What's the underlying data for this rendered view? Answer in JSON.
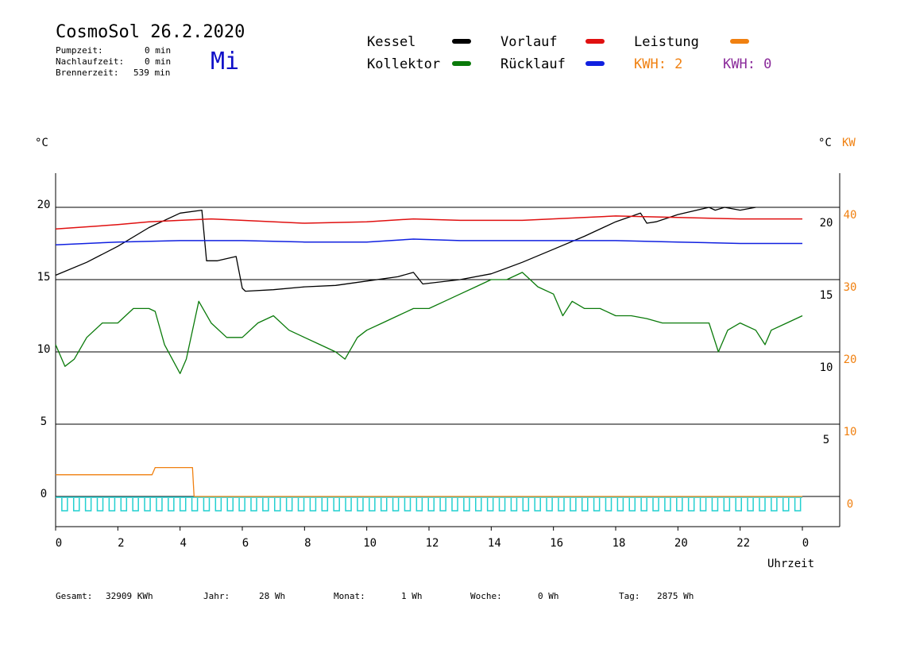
{
  "header": {
    "title": "CosmoSol 26.2.2020",
    "day": "Mi",
    "stats": [
      {
        "label": "Pumpzeit:",
        "value": "0 min"
      },
      {
        "label": "Nachlaufzeit:",
        "value": "0 min"
      },
      {
        "label": "Brennerzeit:",
        "value": "539 min"
      }
    ]
  },
  "legend": {
    "kessel": "Kessel",
    "kollektor": "Kollektor",
    "vorlauf": "Vorlauf",
    "ruecklauf": "Rücklauf",
    "leistung": "Leistung",
    "kwh1": "KWH: 2",
    "kwh2": "KWH: 0"
  },
  "colors": {
    "kessel": "#000000",
    "kollektor": "#0a7a0a",
    "vorlauf": "#e01010",
    "ruecklauf": "#1020e0",
    "leistung": "#f08010",
    "kwh2": "#8a2a9a",
    "pump": "#22d0d0"
  },
  "axes": {
    "left_unit": "°C",
    "right_unit": "°C",
    "right_unit2": "KW",
    "x_label": "Uhrzeit"
  },
  "chart_data": {
    "type": "line",
    "x_unit": "hour",
    "xlim": [
      0,
      24
    ],
    "x_ticks": [
      "0",
      "2",
      "4",
      "6",
      "8",
      "10",
      "12",
      "14",
      "16",
      "18",
      "20",
      "22",
      "0"
    ],
    "left_axis": {
      "ylim": [
        -1.5,
        22.5
      ],
      "ticks": [
        0,
        5,
        10,
        15,
        20
      ]
    },
    "right_axis_temp": {
      "ticks": [
        5,
        10,
        15,
        20
      ]
    },
    "right_axis_kw": {
      "ticks": [
        0,
        10,
        20,
        30,
        40
      ]
    },
    "gridlines": [
      0,
      5,
      10,
      15,
      20
    ],
    "series": [
      {
        "name": "Kessel",
        "color": "#000000",
        "x": [
          0,
          1,
          2,
          3,
          4,
          4.7,
          4.85,
          5.2,
          5.8,
          6.0,
          6.1,
          7,
          8,
          9,
          10,
          11,
          11.5,
          11.8,
          13,
          14,
          15,
          16,
          17,
          18,
          18.8,
          19.0,
          19.3,
          20,
          21,
          21.2,
          21.5,
          22,
          22.5
        ],
        "y": [
          15.3,
          16.2,
          17.3,
          18.6,
          19.6,
          19.8,
          16.3,
          16.3,
          16.6,
          14.4,
          14.2,
          14.3,
          14.5,
          14.6,
          14.9,
          15.2,
          15.5,
          14.7,
          15.0,
          15.4,
          16.2,
          17.1,
          18.0,
          19.0,
          19.6,
          18.9,
          19.0,
          19.5,
          20.0,
          19.8,
          20.0,
          19.8,
          20.0
        ]
      },
      {
        "name": "Vorlauf",
        "color": "#e01010",
        "x": [
          0,
          2,
          3,
          4,
          5,
          6,
          8,
          10,
          11.5,
          13,
          15,
          18,
          20,
          22,
          24
        ],
        "y": [
          18.5,
          18.8,
          19.0,
          19.1,
          19.2,
          19.1,
          18.9,
          19.0,
          19.2,
          19.1,
          19.1,
          19.4,
          19.3,
          19.2,
          19.2
        ]
      },
      {
        "name": "Rücklauf",
        "color": "#1020e0",
        "x": [
          0,
          2,
          4,
          6,
          8,
          10,
          11.5,
          13,
          16,
          18,
          20,
          22,
          24
        ],
        "y": [
          17.4,
          17.6,
          17.7,
          17.7,
          17.6,
          17.6,
          17.8,
          17.7,
          17.7,
          17.7,
          17.6,
          17.5,
          17.5
        ]
      },
      {
        "name": "Kollektor",
        "color": "#0a7a0a",
        "x": [
          0,
          0.3,
          0.6,
          1,
          1.5,
          2,
          2.5,
          3,
          3.2,
          3.5,
          4,
          4.2,
          4.6,
          5,
          5.5,
          6,
          6.5,
          7,
          7.5,
          8,
          8.5,
          9,
          9.3,
          9.7,
          10,
          10.5,
          11,
          11.5,
          12,
          12.5,
          13,
          13.5,
          14,
          14.5,
          15,
          15.5,
          16,
          16.3,
          16.6,
          17,
          17.5,
          18,
          18.5,
          19,
          19.5,
          20,
          20.5,
          21,
          21.3,
          21.6,
          22,
          22.5,
          22.8,
          23,
          23.5,
          24
        ],
        "y": [
          10.5,
          9,
          9.5,
          11,
          12,
          12,
          13,
          13,
          12.8,
          10.5,
          8.5,
          9.5,
          13.5,
          12,
          11,
          11,
          12,
          12.5,
          11.5,
          11,
          10.5,
          10,
          9.5,
          11,
          11.5,
          12,
          12.5,
          13,
          13,
          13.5,
          14,
          14.5,
          15,
          15,
          15.5,
          14.5,
          14,
          12.5,
          13.5,
          13,
          13,
          12.5,
          12.5,
          12.3,
          12,
          12,
          12,
          12,
          10,
          11.5,
          12,
          11.5,
          10.5,
          11.5,
          12,
          12.5
        ]
      },
      {
        "name": "Leistung",
        "color": "#f08010",
        "x": [
          0,
          3.1,
          3.2,
          4.4,
          4.45,
          24
        ],
        "y": [
          1.5,
          1.5,
          2.0,
          2.0,
          0,
          0
        ]
      }
    ],
    "annotations": {
      "kwh_labels": [
        "KWH: 2",
        "KWH: 0"
      ]
    }
  },
  "footer": [
    {
      "label": "Gesamt:",
      "value": "32909 KWh"
    },
    {
      "label": "Jahr:",
      "value": "28 Wh"
    },
    {
      "label": "Monat:",
      "value": "1 Wh"
    },
    {
      "label": "Woche:",
      "value": "0 Wh"
    },
    {
      "label": "Tag:",
      "value": "2875 Wh"
    }
  ]
}
